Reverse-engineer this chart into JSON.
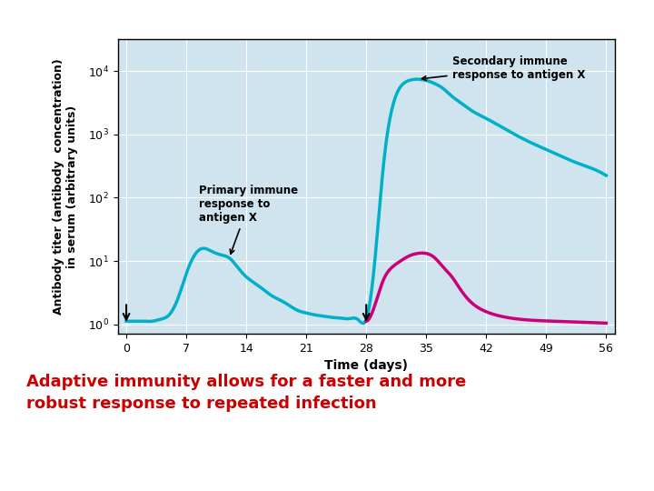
{
  "bg_color": "#cfe4ef",
  "cyan_color": "#00b0c8",
  "magenta_color": "#cc0077",
  "arrow_color": "#111111",
  "xlabel": "Time (days)",
  "ylabel": "Antibody titer (antibody  concentration)\nin serum (arbitrary units)",
  "xticks": [
    0,
    7,
    14,
    21,
    28,
    35,
    42,
    49,
    56
  ],
  "yticks": [
    0,
    1,
    2,
    3,
    4
  ],
  "ytick_labels": [
    "10⁰",
    "10¹",
    "10²",
    "10³",
    "10⁴"
  ],
  "primary_label": "Primary immune\nresponse to\nantigen X",
  "secondary_label": "Secondary immune\nresponse to antigen X",
  "bottom_text_line1": "Adaptive immunity allows for a ",
  "bottom_text_faster": "faster",
  "bottom_text_and": " and ",
  "bottom_text_more": "more",
  "bottom_text_line2_start": "robust",
  "bottom_text_line2_end": " response to repeated infection",
  "bottom_text_color": "#cc0000"
}
